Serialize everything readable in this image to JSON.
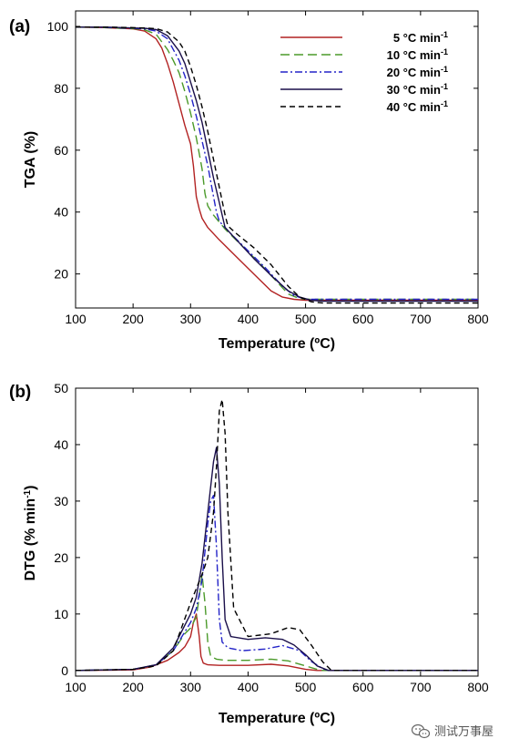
{
  "watermark": {
    "text": "测试万事屋"
  },
  "chart_data": [
    {
      "type": "line",
      "panel_label": "(a)",
      "xlabel": "Temperature (ºC)",
      "ylabel": "TGA (%)",
      "xlim": [
        100,
        800
      ],
      "ylim": [
        9,
        105
      ],
      "x_ticks": [
        100,
        200,
        300,
        400,
        500,
        600,
        700,
        800
      ],
      "y_ticks": [
        20,
        40,
        60,
        80,
        100
      ],
      "grid": false,
      "legend_position": "top-right",
      "series": [
        {
          "name": "5 °C min",
          "unit_exponent": "-1",
          "color": "#b22222",
          "dash": "solid",
          "x": [
            100,
            150,
            200,
            220,
            240,
            250,
            260,
            270,
            280,
            290,
            300,
            305,
            310,
            315,
            320,
            330,
            350,
            380,
            410,
            440,
            460,
            480,
            500,
            520,
            600,
            700,
            800
          ],
          "y": [
            99.8,
            99.6,
            99.2,
            98.5,
            96,
            93,
            88,
            82,
            75,
            68,
            62,
            55,
            45,
            41,
            38,
            35,
            31,
            25.5,
            20,
            14.5,
            12.5,
            11.8,
            11.5,
            11.5,
            11.5,
            11.5,
            11.5
          ]
        },
        {
          "name": "10 °C min",
          "unit_exponent": "-1",
          "color": "#4b9a2a",
          "dash": "10,5",
          "x": [
            100,
            150,
            200,
            220,
            240,
            260,
            270,
            280,
            290,
            300,
            310,
            320,
            325,
            330,
            340,
            360,
            390,
            420,
            450,
            470,
            490,
            510,
            530,
            600,
            700,
            800
          ],
          "y": [
            99.8,
            99.6,
            99.3,
            98.9,
            97.5,
            92.5,
            89,
            85,
            79,
            72,
            64,
            54,
            46,
            42,
            39,
            34.5,
            29,
            23.5,
            17.5,
            13.5,
            12,
            11.8,
            11.8,
            11.8,
            11.8,
            11.8
          ]
        },
        {
          "name": "20 °C min",
          "unit_exponent": "-1",
          "color": "#2323c8",
          "dash": "8,3,2,3",
          "x": [
            100,
            150,
            200,
            220,
            240,
            260,
            280,
            290,
            300,
            310,
            320,
            330,
            340,
            345,
            350,
            370,
            400,
            430,
            460,
            480,
            500,
            520,
            600,
            700,
            800
          ],
          "y": [
            99.8,
            99.7,
            99.4,
            99.2,
            98.5,
            96,
            89,
            84,
            78,
            71,
            63,
            55,
            45,
            40,
            37,
            33,
            27.5,
            22,
            16,
            13,
            11.8,
            11.8,
            11.8,
            11.8,
            11.8
          ]
        },
        {
          "name": "30 °C min",
          "unit_exponent": "-1",
          "color": "#1a0f4a",
          "dash": "solid",
          "x": [
            100,
            150,
            200,
            220,
            240,
            260,
            280,
            290,
            300,
            310,
            320,
            330,
            340,
            350,
            355,
            360,
            380,
            410,
            440,
            470,
            490,
            510,
            530,
            600,
            700,
            800
          ],
          "y": [
            99.8,
            99.8,
            99.5,
            99.4,
            99,
            97,
            92,
            88,
            82,
            76,
            69,
            60,
            51,
            43,
            39,
            35,
            31,
            25,
            19.5,
            14.5,
            12.5,
            11.5,
            11.2,
            11.2,
            11.2,
            11.2
          ]
        },
        {
          "name": "40 °C min",
          "unit_exponent": "-1",
          "color": "#000000",
          "dash": "6,4",
          "x": [
            100,
            150,
            200,
            220,
            240,
            260,
            280,
            290,
            300,
            310,
            320,
            330,
            340,
            350,
            360,
            365,
            380,
            410,
            440,
            470,
            490,
            510,
            530,
            600,
            700,
            800
          ],
          "y": [
            99.8,
            99.8,
            99.6,
            99.5,
            99.3,
            98.2,
            95,
            92,
            87,
            81,
            74,
            66,
            57,
            48,
            39,
            35.5,
            33,
            28.5,
            23,
            16,
            12.5,
            11,
            10.6,
            10.6,
            10.6,
            10.6
          ]
        }
      ]
    },
    {
      "type": "line",
      "panel_label": "(b)",
      "xlabel": "Temperature (ºC)",
      "ylabel": "DTG (% min",
      "ylabel_exponent": "-1",
      "ylabel_suffix": ")",
      "xlim": [
        100,
        800
      ],
      "ylim": [
        -1,
        50
      ],
      "x_ticks": [
        100,
        200,
        300,
        400,
        500,
        600,
        700,
        800
      ],
      "y_ticks": [
        0,
        10,
        20,
        30,
        40,
        50
      ],
      "grid": false,
      "series": [
        {
          "name": "5 °C min",
          "color": "#b22222",
          "dash": "solid",
          "x": [
            100,
            200,
            230,
            260,
            280,
            290,
            300,
            305,
            310,
            315,
            318,
            322,
            330,
            350,
            400,
            440,
            470,
            500,
            520,
            600,
            800
          ],
          "y": [
            0,
            0.1,
            0.6,
            1.8,
            3.2,
            4.2,
            6,
            8.5,
            10,
            6,
            2.5,
            1.3,
            1,
            0.9,
            0.9,
            1.1,
            0.8,
            0.2,
            0,
            0,
            0
          ]
        },
        {
          "name": "10 °C min",
          "color": "#4b9a2a",
          "dash": "10,5",
          "x": [
            100,
            200,
            240,
            270,
            290,
            300,
            310,
            315,
            320,
            325,
            330,
            335,
            345,
            360,
            400,
            440,
            470,
            500,
            520,
            530,
            600,
            800
          ],
          "y": [
            0,
            0.2,
            1,
            3.5,
            6.5,
            7.5,
            9.5,
            13,
            17,
            12,
            5,
            2.5,
            2,
            1.8,
            1.8,
            2,
            1.7,
            0.8,
            0.2,
            0,
            0,
            0
          ]
        },
        {
          "name": "20 °C min",
          "color": "#2323c8",
          "dash": "8,3,2,3",
          "x": [
            100,
            200,
            240,
            270,
            300,
            310,
            320,
            330,
            335,
            340,
            345,
            350,
            355,
            365,
            390,
            430,
            460,
            490,
            510,
            530,
            540,
            600,
            800
          ],
          "y": [
            0,
            0.2,
            1,
            3.5,
            8.5,
            11,
            16,
            26,
            30,
            31,
            22,
            9,
            5,
            4,
            3.5,
            3.8,
            4.4,
            3.5,
            1.6,
            0.3,
            0,
            0,
            0
          ]
        },
        {
          "name": "30 °C min",
          "color": "#1a0f4a",
          "dash": "solid",
          "x": [
            100,
            200,
            240,
            270,
            300,
            310,
            320,
            330,
            340,
            345,
            350,
            355,
            360,
            370,
            400,
            430,
            460,
            480,
            500,
            520,
            540,
            600,
            800
          ],
          "y": [
            0,
            0.2,
            1,
            4,
            10,
            13,
            19,
            28,
            37,
            39.5,
            33,
            20,
            9,
            6,
            5.5,
            5.8,
            5.5,
            4.5,
            2.8,
            0.8,
            0,
            0,
            0
          ]
        },
        {
          "name": "40 °C min",
          "color": "#000000",
          "dash": "6,4",
          "x": [
            100,
            200,
            240,
            270,
            300,
            320,
            330,
            340,
            345,
            350,
            355,
            360,
            365,
            375,
            400,
            440,
            470,
            490,
            510,
            530,
            545,
            600,
            800
          ],
          "y": [
            0,
            0.2,
            0.8,
            3.5,
            12,
            17,
            20,
            28,
            36,
            46,
            48,
            42,
            28,
            11,
            6,
            6.5,
            7.6,
            7.2,
            4.5,
            1.5,
            0,
            0,
            0
          ]
        }
      ]
    }
  ]
}
